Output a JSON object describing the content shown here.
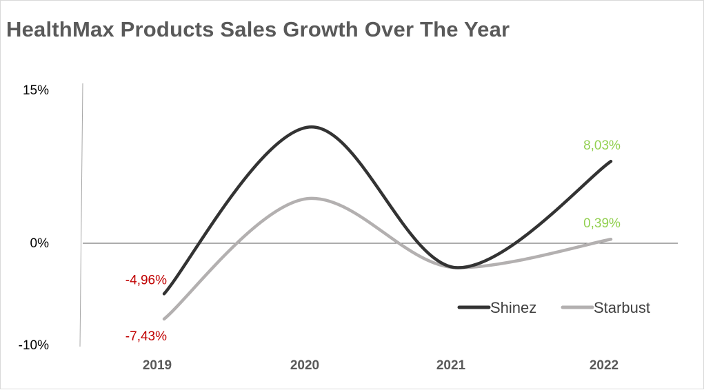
{
  "chart_data": {
    "type": "line",
    "title": "HealthMax Products Sales Growth Over The Year",
    "categories": [
      "2019",
      "2020",
      "2021",
      "2022"
    ],
    "series": [
      {
        "name": "Shinez",
        "values": [
          -4.96,
          11.4,
          -2.4,
          8.03
        ],
        "color": "#333333",
        "labels": {
          "0": "-4,96%",
          "3": "8,03%"
        }
      },
      {
        "name": "Starbust",
        "values": [
          -7.43,
          4.4,
          -2.4,
          0.39
        ],
        "color": "#b3b0b0",
        "labels": {
          "0": "-7,43%",
          "3": "0,39%"
        }
      }
    ],
    "ylim": [
      -10,
      15
    ],
    "yticks": [
      {
        "value": 15,
        "label": "15%"
      },
      {
        "value": 0,
        "label": "0%"
      },
      {
        "value": -10,
        "label": "-10%"
      }
    ],
    "smooth": true,
    "legend": "bottom-right",
    "label_colors": {
      "negative": "#c00000",
      "positive": "#92d050"
    }
  }
}
